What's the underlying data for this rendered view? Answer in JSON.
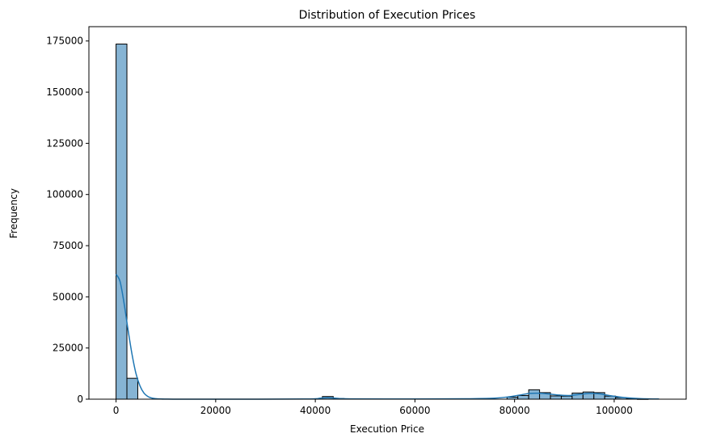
{
  "chart_data": {
    "type": "bar",
    "title": "Distribution of Execution Prices",
    "xlabel": "Execution Price",
    "ylabel": "Frequency",
    "xlim": [
      -5450,
      114450
    ],
    "ylim": [
      0,
      182000
    ],
    "xticks": [
      0,
      20000,
      40000,
      60000,
      80000,
      100000
    ],
    "yticks": [
      0,
      25000,
      50000,
      75000,
      100000,
      125000,
      150000,
      175000
    ],
    "grid": false,
    "legend": "none",
    "bar_color": "#86b4d4",
    "edge_color": "#000000",
    "kde_color": "#1f77b4",
    "bins": {
      "edges": [
        0,
        2180,
        4360,
        6540,
        8720,
        10900,
        13080,
        15260,
        17440,
        19620,
        21800,
        23980,
        26160,
        28340,
        30520,
        32700,
        34880,
        37060,
        39240,
        41420,
        43600,
        45780,
        47960,
        50140,
        52320,
        54500,
        56680,
        58860,
        61040,
        63220,
        65400,
        67580,
        69760,
        71940,
        74120,
        76300,
        78480,
        80660,
        82840,
        85020,
        87200,
        89380,
        91560,
        93740,
        95920,
        98100,
        100280,
        102460,
        104640,
        106820,
        109000
      ],
      "counts": [
        173500,
        10200,
        0,
        0,
        0,
        0,
        0,
        0,
        0,
        0,
        0,
        0,
        0,
        0,
        0,
        0,
        0,
        0,
        0,
        1300,
        300,
        0,
        0,
        0,
        0,
        0,
        0,
        0,
        0,
        0,
        0,
        0,
        0,
        0,
        0,
        0,
        1000,
        1800,
        4600,
        3200,
        1600,
        1500,
        3000,
        3500,
        3200,
        1500,
        800,
        200,
        100,
        0
      ]
    },
    "kde": {
      "x": [
        0,
        800,
        1600,
        2400,
        3200,
        4000,
        4800,
        5600,
        6400,
        7200,
        8000,
        9000,
        10000,
        12000,
        20000,
        38000,
        41000,
        42500,
        44000,
        47000,
        60000,
        70000,
        76000,
        79000,
        81000,
        83000,
        85000,
        87000,
        89000,
        91000,
        93000,
        95000,
        97000,
        99000,
        101000,
        103000,
        105000,
        107000,
        109000
      ],
      "y": [
        61000,
        57500,
        47000,
        34000,
        22000,
        12500,
        6500,
        3000,
        1300,
        550,
        250,
        100,
        50,
        0,
        0,
        100,
        500,
        700,
        500,
        150,
        100,
        200,
        500,
        1200,
        2000,
        2800,
        2900,
        2500,
        2000,
        1800,
        2300,
        2800,
        2600,
        1800,
        1100,
        600,
        300,
        150,
        80
      ]
    }
  }
}
